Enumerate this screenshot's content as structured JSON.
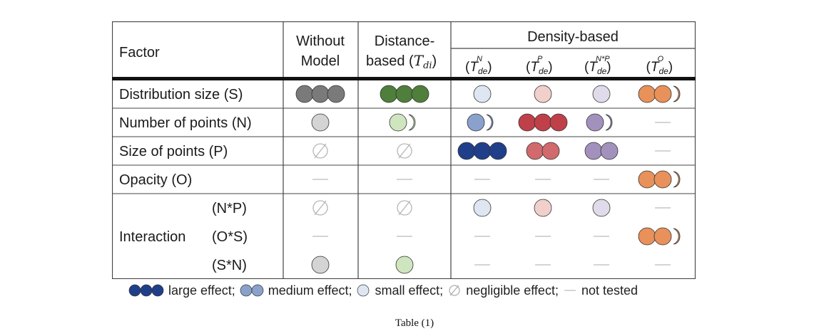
{
  "table": {
    "header": {
      "factor": "Factor",
      "without_model": [
        "Without",
        "Model"
      ],
      "distance_based": [
        "Distance-",
        "based"
      ],
      "distance_symbol": {
        "base": "T",
        "sub": "di"
      },
      "density_based": "Density-based",
      "density_sub": [
        {
          "sup": "N",
          "sub": "de"
        },
        {
          "sup": "P",
          "sub": "de"
        },
        {
          "sup": "N*P",
          "sub": "de"
        },
        {
          "sup": "O",
          "sub": "de"
        }
      ]
    },
    "rows": [
      {
        "label": "Distribution size (S)",
        "cells": [
          "large-gray",
          "large-green",
          "small-blue",
          "small-red",
          "small-purple",
          "medlarge-orange"
        ]
      },
      {
        "label": "Number of points (N)",
        "cells": [
          "small-gray",
          "medium-green",
          "medium-blue",
          "large-red",
          "medium-purple",
          "none"
        ]
      },
      {
        "label": "Size of points (P)",
        "cells": [
          "negligible",
          "negligible",
          "large-blue",
          "medium-red",
          "medium-purple",
          "none"
        ]
      },
      {
        "label": "Opacity (O)",
        "cells": [
          "none",
          "none",
          "none",
          "none",
          "none",
          "medlarge-orange"
        ]
      },
      {
        "label": "(N*P)",
        "cells": [
          "negligible",
          "negligible",
          "small-blue",
          "small-red",
          "small-purple",
          "none"
        ]
      },
      {
        "label": "(O*S)",
        "cells": [
          "none",
          "none",
          "none",
          "none",
          "none",
          "medlarge-orange"
        ]
      },
      {
        "label": "(S*N)",
        "cells": [
          "small-gray",
          "small-green",
          "none",
          "none",
          "none",
          "none"
        ]
      }
    ],
    "interaction_label": "Interaction"
  },
  "legend": [
    {
      "icon": "large-effect-icon",
      "label": "large effect;"
    },
    {
      "icon": "medium-effect-icon",
      "label": "medium effect;"
    },
    {
      "icon": "small-effect-icon",
      "label": "small effect;"
    },
    {
      "icon": "negligible-effect-icon",
      "label": "negligible effect;"
    },
    {
      "icon": "not-tested-icon",
      "label": "not tested"
    }
  ],
  "caption": "Table (1)",
  "colors": {
    "gray": {
      "fill": "#7a7a7a",
      "light": "#d4d4d4"
    },
    "green": {
      "fill": "#4f7f3a",
      "light": "#cfe5bf"
    },
    "blue": {
      "fill": "#1f3f8a",
      "mid": "#8aa1cc",
      "light": "#dde6f1"
    },
    "red": {
      "fill": "#c0404a",
      "mid": "#d06a6c",
      "light": "#f1cfcb"
    },
    "purple": {
      "fill": "#8e70b0",
      "mid": "#a391bd",
      "light": "#e0dbea"
    },
    "orange": {
      "fill": "#e8915a"
    }
  }
}
